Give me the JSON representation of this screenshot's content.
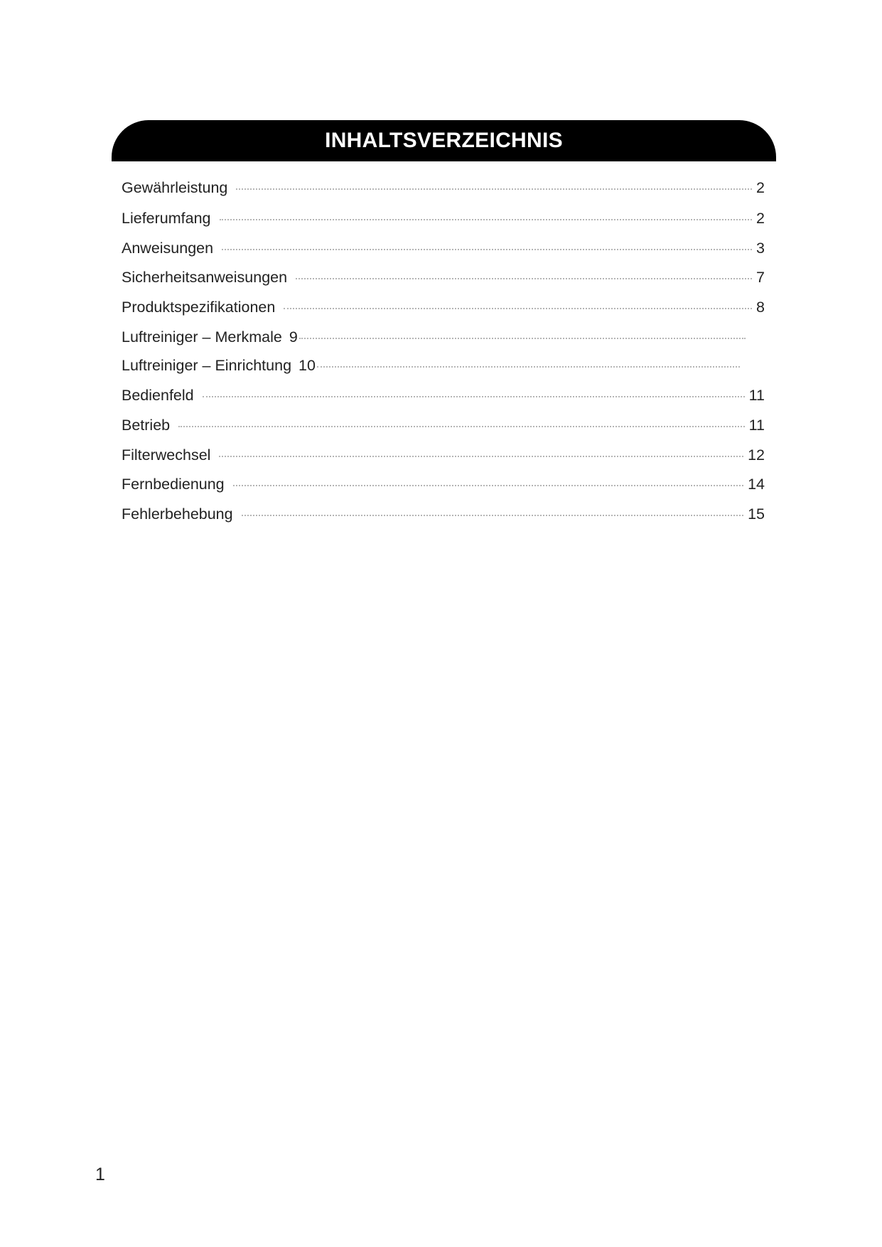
{
  "title": "INHALTSVERZEICHNIS",
  "entries": [
    {
      "label": "Gewährleistung",
      "page": "2"
    },
    {
      "label": "Lieferumfang",
      "page": "2"
    },
    {
      "label": "Anweisungen",
      "page": "3"
    },
    {
      "label": "Sicherheitsanweisungen",
      "page": "7"
    },
    {
      "label": "Produktspezifikationen",
      "page": "8"
    },
    {
      "label": "Luftreiniger – Merkmale",
      "page": "9"
    },
    {
      "label": "Luftreiniger – Einrichtung",
      "page": "10"
    },
    {
      "label": "Bedienfeld",
      "page": "11"
    },
    {
      "label": "Betrieb",
      "page": "11"
    },
    {
      "label": "Filterwechsel",
      "page": "12"
    },
    {
      "label": "Fernbedienung",
      "page": "14"
    },
    {
      "label": "Fehlerbehebung",
      "page": "15"
    }
  ],
  "page_number": "1"
}
